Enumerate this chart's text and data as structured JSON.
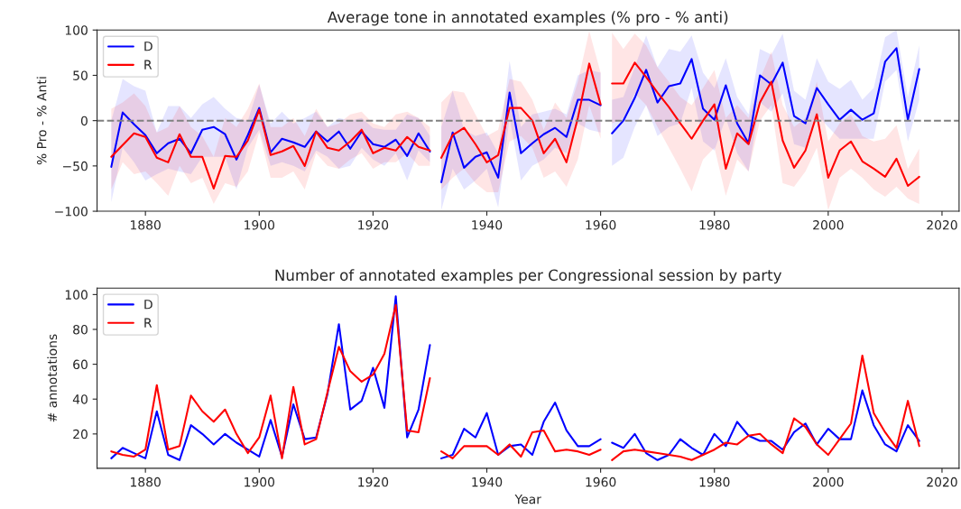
{
  "chart_data": [
    {
      "type": "line",
      "title": "Average tone in annotated examples (% pro - % anti)",
      "ylabel": "% Pro - % Anti",
      "x": [
        1874,
        1876,
        1878,
        1880,
        1882,
        1884,
        1886,
        1888,
        1890,
        1892,
        1894,
        1896,
        1898,
        1900,
        1902,
        1904,
        1906,
        1908,
        1910,
        1912,
        1914,
        1916,
        1918,
        1920,
        1922,
        1924,
        1926,
        1928,
        1930,
        1931,
        1932,
        1934,
        1936,
        1938,
        1940,
        1942,
        1944,
        1946,
        1948,
        1950,
        1952,
        1954,
        1956,
        1958,
        1960,
        1961,
        1962,
        1964,
        1966,
        1968,
        1970,
        1972,
        1974,
        1976,
        1978,
        1980,
        1982,
        1984,
        1986,
        1988,
        1990,
        1992,
        1994,
        1996,
        1998,
        2000,
        2002,
        2004,
        2006,
        2008,
        2010,
        2012,
        2014,
        2016
      ],
      "series": [
        {
          "name": "D",
          "color": "#0000ff",
          "values": [
            -51,
            9,
            -4,
            -16,
            -36,
            -25,
            -20,
            -36,
            -10,
            -7,
            -15,
            -43,
            -16,
            14,
            -35,
            -20,
            -24,
            -29,
            -12,
            -23,
            -12,
            -31,
            -12,
            -26,
            -29,
            -21,
            -39,
            -14,
            -34,
            null,
            -68,
            -13,
            -52,
            -40,
            -35,
            -63,
            31,
            -36,
            -25,
            -15,
            -8,
            -18,
            23,
            23,
            17,
            null,
            -14,
            0,
            25,
            56,
            20,
            38,
            41,
            68,
            13,
            1,
            39,
            -3,
            -25,
            50,
            40,
            64,
            5,
            -3,
            36,
            18,
            1,
            12,
            1,
            8,
            65,
            80,
            1,
            57
          ],
          "upper": [
            0,
            46,
            38,
            33,
            -13,
            16,
            16,
            3,
            18,
            26,
            13,
            3,
            0,
            40,
            -3,
            10,
            -3,
            3,
            10,
            -7,
            3,
            0,
            3,
            -8,
            -10,
            -10,
            7,
            3,
            -17,
            null,
            -7,
            33,
            -10,
            -17,
            -13,
            -36,
            66,
            -7,
            7,
            10,
            13,
            7,
            50,
            56,
            53,
            null,
            23,
            26,
            59,
            94,
            59,
            79,
            76,
            94,
            53,
            36,
            69,
            26,
            7,
            79,
            73,
            96,
            33,
            23,
            69,
            43,
            35,
            45,
            23,
            36,
            92,
            100,
            26,
            83
          ],
          "lower": [
            -90,
            -30,
            -46,
            -66,
            -59,
            -53,
            -56,
            -59,
            -40,
            -40,
            -40,
            -76,
            -30,
            -10,
            -50,
            -46,
            -50,
            -56,
            -33,
            -40,
            -53,
            -50,
            -30,
            -43,
            -50,
            -36,
            -66,
            -33,
            -46,
            null,
            -99,
            -53,
            -76,
            -66,
            -53,
            -96,
            3,
            -66,
            -50,
            -43,
            -30,
            -36,
            -3,
            -10,
            -13,
            null,
            -50,
            -41,
            -7,
            17,
            -17,
            -7,
            -3,
            36,
            -23,
            -33,
            3,
            -36,
            -56,
            20,
            10,
            30,
            -26,
            -30,
            7,
            -7,
            -20,
            -20,
            -20,
            -20,
            43,
            56,
            -23,
            23
          ]
        },
        {
          "name": "R",
          "color": "#ff0000",
          "values": [
            -40,
            -27,
            -14,
            -18,
            -41,
            -46,
            -15,
            -40,
            -40,
            -75,
            -39,
            -40,
            -22,
            12,
            -38,
            -34,
            -28,
            -50,
            -12,
            -30,
            -33,
            -23,
            -10,
            -36,
            -30,
            -33,
            -18,
            -29,
            -33,
            null,
            -41,
            -16,
            -8,
            -26,
            -46,
            -38,
            14,
            14,
            0,
            -36,
            -20,
            -46,
            3,
            63,
            18,
            null,
            41,
            41,
            64,
            48,
            31,
            15,
            -3,
            -20,
            0,
            18,
            -53,
            -14,
            -26,
            20,
            43,
            -22,
            -52,
            -33,
            7,
            -63,
            -33,
            -23,
            -45,
            -53,
            -62,
            -42,
            -72,
            -62
          ],
          "upper": [
            13,
            20,
            30,
            16,
            -13,
            -7,
            16,
            -7,
            -17,
            -40,
            3,
            -7,
            13,
            41,
            -7,
            -7,
            3,
            -17,
            13,
            -7,
            -3,
            7,
            10,
            -3,
            -7,
            7,
            10,
            3,
            -7,
            null,
            20,
            33,
            31,
            7,
            -17,
            -10,
            46,
            43,
            23,
            -10,
            20,
            3,
            43,
            99,
            53,
            null,
            97,
            79,
            96,
            83,
            59,
            43,
            26,
            17,
            36,
            56,
            3,
            17,
            3,
            46,
            76,
            17,
            -7,
            3,
            43,
            -23,
            -3,
            7,
            -17,
            -23,
            -20,
            -5,
            -53,
            -31
          ],
          "lower": [
            -76,
            -46,
            -59,
            -56,
            -69,
            -83,
            -50,
            -69,
            -63,
            -92,
            -69,
            -73,
            -56,
            -13,
            -63,
            -63,
            -56,
            -76,
            -36,
            -50,
            -53,
            -43,
            -36,
            -53,
            -46,
            -46,
            -36,
            -50,
            -50,
            null,
            -76,
            -63,
            -53,
            -69,
            -79,
            -79,
            -23,
            -17,
            -30,
            -63,
            -56,
            -73,
            -43,
            17,
            -20,
            null,
            -3,
            3,
            30,
            17,
            -7,
            -30,
            -53,
            -78,
            -43,
            -30,
            -83,
            -43,
            -56,
            0,
            17,
            -69,
            -73,
            -56,
            -30,
            -99,
            -63,
            -53,
            -63,
            -76,
            -84,
            -73,
            -86,
            -92
          ]
        }
      ],
      "xlim": [
        1871.5,
        2023
      ],
      "xticks": [
        1880,
        1900,
        1920,
        1940,
        1960,
        1980,
        2000,
        2020
      ],
      "ylim": [
        -100,
        100
      ],
      "yticks": [
        {
          "value": -100,
          "label": "−100"
        },
        {
          "value": -50,
          "label": "−50"
        },
        0,
        50,
        100
      ],
      "ref_lines": [
        {
          "axis": "y",
          "value": 0,
          "color": "#808080",
          "line_style": "dashed"
        }
      ],
      "legend": "top left",
      "grid": false
    },
    {
      "type": "line",
      "title": "Number of annotated examples per Congressional session by party",
      "xlabel": "Year",
      "ylabel": "# annotations",
      "x": [
        1874,
        1876,
        1878,
        1880,
        1882,
        1884,
        1886,
        1888,
        1890,
        1892,
        1894,
        1896,
        1898,
        1900,
        1902,
        1904,
        1906,
        1908,
        1910,
        1912,
        1914,
        1916,
        1918,
        1920,
        1922,
        1924,
        1926,
        1928,
        1930,
        1931,
        1932,
        1934,
        1936,
        1938,
        1940,
        1942,
        1944,
        1946,
        1948,
        1950,
        1952,
        1954,
        1956,
        1958,
        1960,
        1961,
        1962,
        1964,
        1966,
        1968,
        1970,
        1972,
        1974,
        1976,
        1978,
        1980,
        1982,
        1984,
        1986,
        1988,
        1990,
        1992,
        1994,
        1996,
        1998,
        2000,
        2002,
        2004,
        2006,
        2008,
        2010,
        2012,
        2014,
        2016
      ],
      "series": [
        {
          "name": "D",
          "color": "#0000ff",
          "values": [
            6,
            12,
            9,
            6,
            33,
            8,
            5,
            25,
            20,
            14,
            20,
            15,
            11,
            7,
            28,
            7,
            37,
            17,
            18,
            43,
            83,
            34,
            39,
            58,
            35,
            99,
            18,
            34,
            71,
            null,
            6,
            8,
            23,
            18,
            32,
            8,
            13,
            14,
            8,
            27,
            38,
            22,
            13,
            13,
            17,
            null,
            15,
            12,
            20,
            9,
            5,
            8,
            17,
            12,
            8,
            20,
            13,
            27,
            19,
            16,
            16,
            11,
            21,
            26,
            14,
            23,
            17,
            17,
            45,
            25,
            14,
            10,
            25,
            16
          ]
        },
        {
          "name": "R",
          "color": "#ff0000",
          "values": [
            10,
            8,
            7,
            11,
            48,
            11,
            13,
            42,
            33,
            27,
            34,
            20,
            9,
            18,
            42,
            6,
            47,
            14,
            17,
            44,
            70,
            56,
            50,
            54,
            66,
            94,
            22,
            21,
            52,
            null,
            10,
            6,
            13,
            13,
            13,
            8,
            14,
            7,
            21,
            22,
            10,
            11,
            10,
            8,
            11,
            null,
            5,
            10,
            11,
            10,
            9,
            8,
            7,
            5,
            8,
            11,
            15,
            14,
            19,
            20,
            14,
            9,
            29,
            24,
            14,
            8,
            17,
            26,
            65,
            32,
            21,
            12,
            39,
            13
          ]
        }
      ],
      "xlim": [
        1871.5,
        2023
      ],
      "xticks": [
        1880,
        1900,
        1920,
        1940,
        1960,
        1980,
        2000,
        2020
      ],
      "ylim": [
        0.3,
        103.7
      ],
      "yticks": [
        20,
        40,
        60,
        80,
        100
      ],
      "legend": "top left",
      "grid": false
    }
  ]
}
